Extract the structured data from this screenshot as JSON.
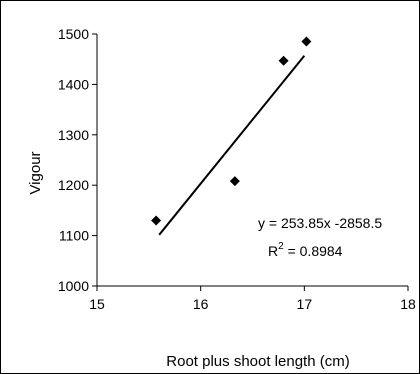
{
  "chart_data": {
    "type": "scatter",
    "title": "",
    "xlabel": "Root plus shoot length (cm)",
    "ylabel": "Vigour",
    "xlim": [
      15,
      18
    ],
    "ylim": [
      1000,
      1500
    ],
    "xticks": [
      15,
      16,
      17,
      18
    ],
    "yticks": [
      1000,
      1100,
      1200,
      1300,
      1400,
      1500
    ],
    "grid": false,
    "points": [
      {
        "x": 15.57,
        "y": 1130
      },
      {
        "x": 16.33,
        "y": 1208
      },
      {
        "x": 16.8,
        "y": 1447
      },
      {
        "x": 17.02,
        "y": 1485
      }
    ],
    "trendline": {
      "slope": 253.85,
      "intercept": -2858.5,
      "x_range": [
        15.6,
        17.0
      ]
    },
    "annotations": {
      "equation": "y = 253.85x -2858.5",
      "r2_prefix": "R",
      "r2_sup": "2",
      "r2_suffix": " = 0.8984"
    },
    "colors": {
      "marker": "#000000",
      "line": "#000000",
      "axis": "#000000"
    }
  }
}
